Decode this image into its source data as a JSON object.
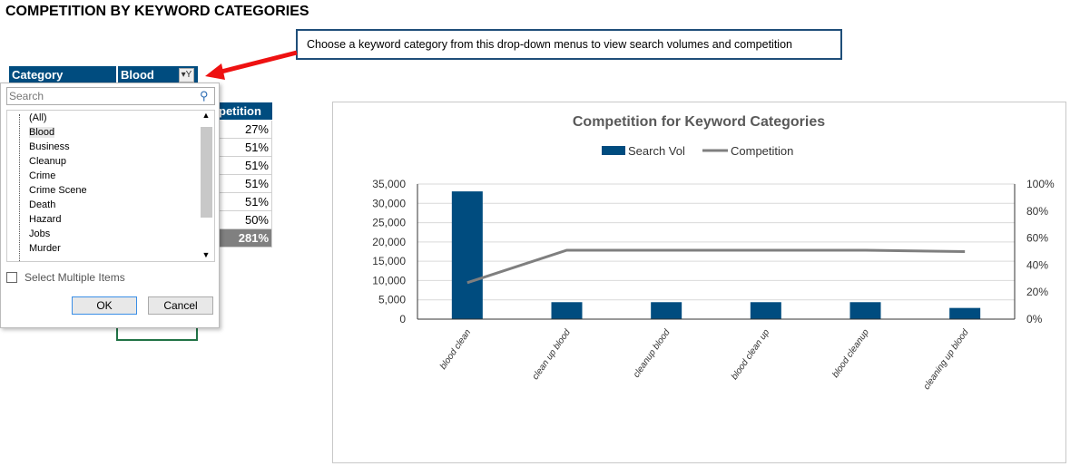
{
  "page_title": "COMPETITION BY KEYWORD CATEGORIES",
  "callout": "Choose a keyword category from this drop-down menus to view search volumes and competition",
  "filter": {
    "label": "Category",
    "value": "Blood"
  },
  "table": {
    "header": "petition",
    "values": [
      "27%",
      "51%",
      "51%",
      "51%",
      "51%",
      "50%"
    ],
    "total": "281%"
  },
  "dropdown": {
    "search_placeholder": "Search",
    "items": [
      "(All)",
      "Blood",
      "Business",
      "Cleanup",
      "Crime",
      "Crime Scene",
      "Death",
      "Hazard",
      "Jobs",
      "Murder"
    ],
    "selected": "Blood",
    "multi_label": "Select Multiple Items",
    "ok": "OK",
    "cancel": "Cancel"
  },
  "colors": {
    "bar": "#004c7f",
    "line": "#7f7f7f",
    "header": "#004c7f",
    "arrow": "#ee1111"
  },
  "chart_data": {
    "type": "bar+line",
    "title": "Competition for Keyword Categories",
    "categories": [
      "blood clean",
      "clean up blood",
      "cleanup blood",
      "blood clean up",
      "blood cleanup",
      "cleaning up blood"
    ],
    "series": [
      {
        "name": "Search Vol",
        "type": "bar",
        "axis": "left",
        "values": [
          33100,
          4400,
          4400,
          4400,
          4400,
          2900
        ]
      },
      {
        "name": "Competition",
        "type": "line",
        "axis": "right",
        "values": [
          27,
          51,
          51,
          51,
          51,
          50
        ]
      }
    ],
    "ylim": [
      0,
      35000
    ],
    "y_ticks": [
      "0",
      "5,000",
      "10,000",
      "15,000",
      "20,000",
      "25,000",
      "30,000",
      "35,000"
    ],
    "y2lim": [
      0,
      100
    ],
    "y2_ticks": [
      "0%",
      "20%",
      "40%",
      "60%",
      "80%",
      "100%"
    ],
    "legend": "top",
    "grid": true
  }
}
